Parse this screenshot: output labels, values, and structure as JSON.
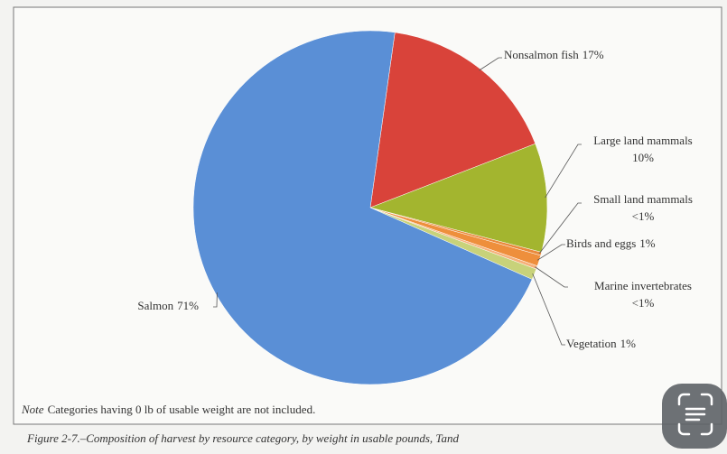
{
  "chart_data": {
    "type": "pie",
    "categories": [
      "Nonsalmon fish",
      "Large land mammals",
      "Small land mammals",
      "Birds and eggs",
      "Marine invertebrates",
      "Vegetation",
      "Salmon"
    ],
    "values": [
      17,
      10,
      0.3,
      1,
      0.3,
      1,
      71
    ],
    "value_labels": [
      "17%",
      "10%",
      "<1%",
      "1%",
      "<1%",
      "1%",
      "71%"
    ],
    "colors": [
      "#d9433a",
      "#a3b52f",
      "#e9893b",
      "#ee8f3c",
      "#f6b07a",
      "#c8d27a",
      "#5a8fd6"
    ],
    "note_label": "Note",
    "note": "Categories having 0 lb of usable weight are not included.",
    "caption": "Figure 2-7.–Composition of harvest by resource category, by weight in usable pounds, Tand"
  }
}
